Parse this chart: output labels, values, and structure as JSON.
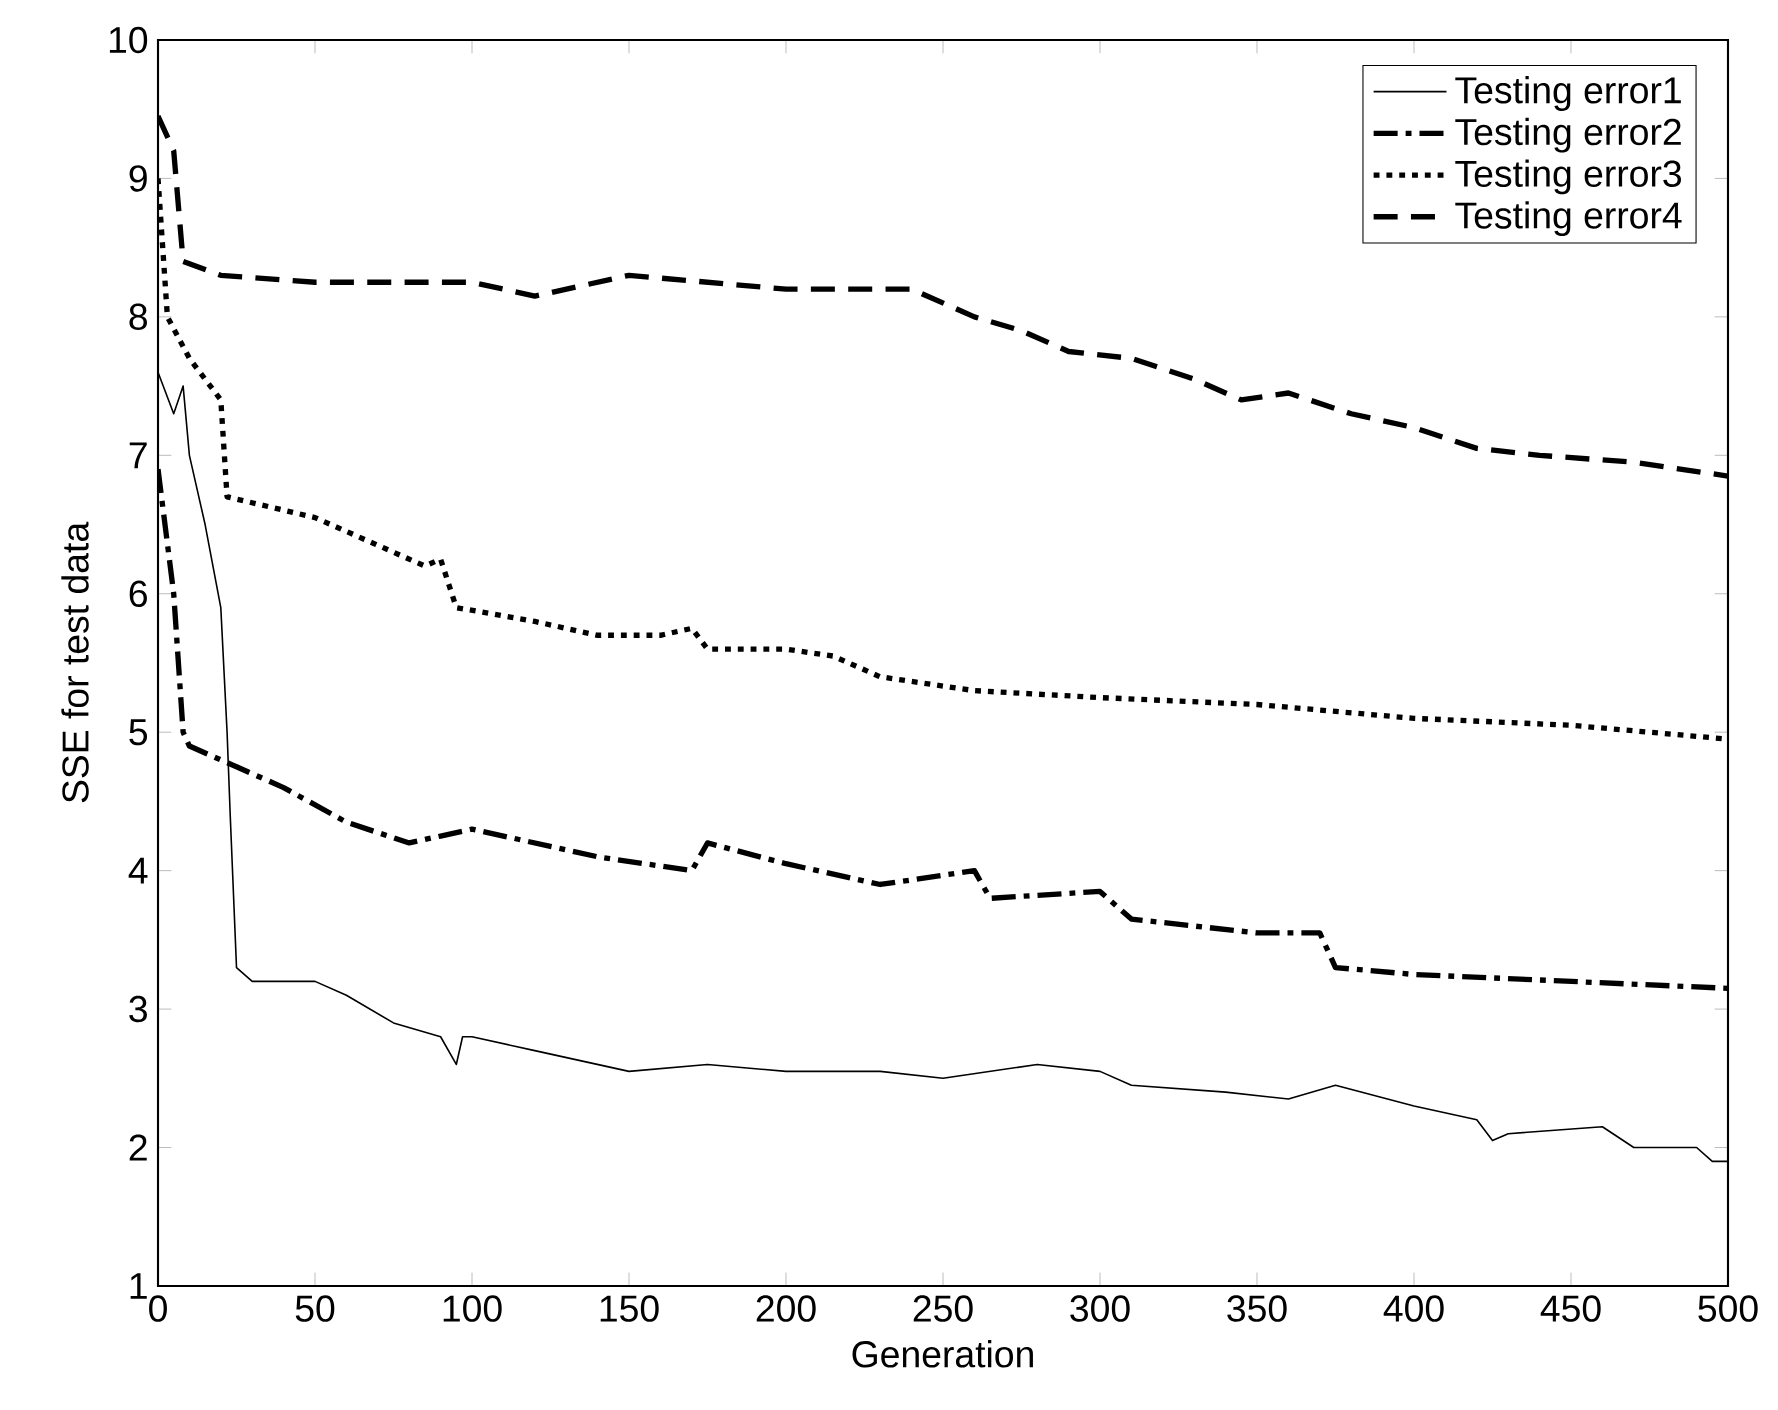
{
  "chart_data": {
    "type": "line",
    "xlabel": "Generation",
    "ylabel": "SSE for test data",
    "xlim": [
      0,
      500
    ],
    "ylim": [
      1,
      10
    ],
    "xticks": [
      0,
      50,
      100,
      150,
      200,
      250,
      300,
      350,
      400,
      450,
      500
    ],
    "yticks": [
      1,
      2,
      3,
      4,
      5,
      6,
      7,
      8,
      9,
      10
    ],
    "legend": "top right",
    "grid": false,
    "series": [
      {
        "name": "Testing error1",
        "color": "#000000",
        "line_style": "solid",
        "x": [
          0,
          5,
          8,
          10,
          15,
          20,
          22,
          23,
          25,
          30,
          50,
          60,
          75,
          90,
          95,
          97,
          100,
          120,
          150,
          175,
          200,
          230,
          250,
          280,
          300,
          310,
          340,
          360,
          375,
          400,
          420,
          425,
          430,
          460,
          470,
          490,
          495,
          500
        ],
        "values": [
          7.6,
          7.3,
          7.5,
          7.0,
          6.5,
          5.9,
          5.0,
          4.4,
          3.3,
          3.2,
          3.2,
          3.1,
          2.9,
          2.8,
          2.6,
          2.8,
          2.8,
          2.7,
          2.55,
          2.6,
          2.55,
          2.55,
          2.5,
          2.6,
          2.55,
          2.45,
          2.4,
          2.35,
          2.45,
          2.3,
          2.2,
          2.05,
          2.1,
          2.15,
          2.0,
          2.0,
          1.9,
          1.9
        ]
      },
      {
        "name": "Testing error2",
        "color": "#000000",
        "line_style": "dashdot",
        "x": [
          0,
          5,
          8,
          10,
          20,
          25,
          40,
          60,
          80,
          90,
          100,
          120,
          140,
          170,
          175,
          200,
          230,
          260,
          265,
          300,
          310,
          350,
          370,
          375,
          400,
          450,
          500
        ],
        "values": [
          6.9,
          6.0,
          5.0,
          4.9,
          4.8,
          4.75,
          4.6,
          4.35,
          4.2,
          4.25,
          4.3,
          4.2,
          4.1,
          4.0,
          4.2,
          4.05,
          3.9,
          4.0,
          3.8,
          3.85,
          3.65,
          3.55,
          3.55,
          3.3,
          3.25,
          3.2,
          3.15
        ]
      },
      {
        "name": "Testing error3",
        "color": "#000000",
        "line_style": "dotted",
        "x": [
          0,
          3,
          10,
          20,
          22,
          50,
          70,
          85,
          90,
          95,
          120,
          140,
          160,
          170,
          175,
          200,
          215,
          230,
          260,
          300,
          350,
          400,
          450,
          500
        ],
        "values": [
          9.0,
          8.0,
          7.7,
          7.4,
          6.7,
          6.55,
          6.35,
          6.2,
          6.25,
          5.9,
          5.8,
          5.7,
          5.7,
          5.75,
          5.6,
          5.6,
          5.55,
          5.4,
          5.3,
          5.25,
          5.2,
          5.1,
          5.05,
          4.95
        ]
      },
      {
        "name": "Testing error4",
        "color": "#000000",
        "line_style": "dashed",
        "x": [
          0,
          5,
          8,
          20,
          50,
          80,
          100,
          120,
          150,
          175,
          200,
          240,
          260,
          275,
          290,
          310,
          330,
          345,
          360,
          380,
          400,
          420,
          440,
          470,
          500
        ],
        "values": [
          9.45,
          9.2,
          8.4,
          8.3,
          8.25,
          8.25,
          8.25,
          8.15,
          8.3,
          8.25,
          8.2,
          8.2,
          8.0,
          7.9,
          7.75,
          7.7,
          7.55,
          7.4,
          7.45,
          7.3,
          7.2,
          7.05,
          7.0,
          6.95,
          6.85
        ]
      }
    ]
  }
}
